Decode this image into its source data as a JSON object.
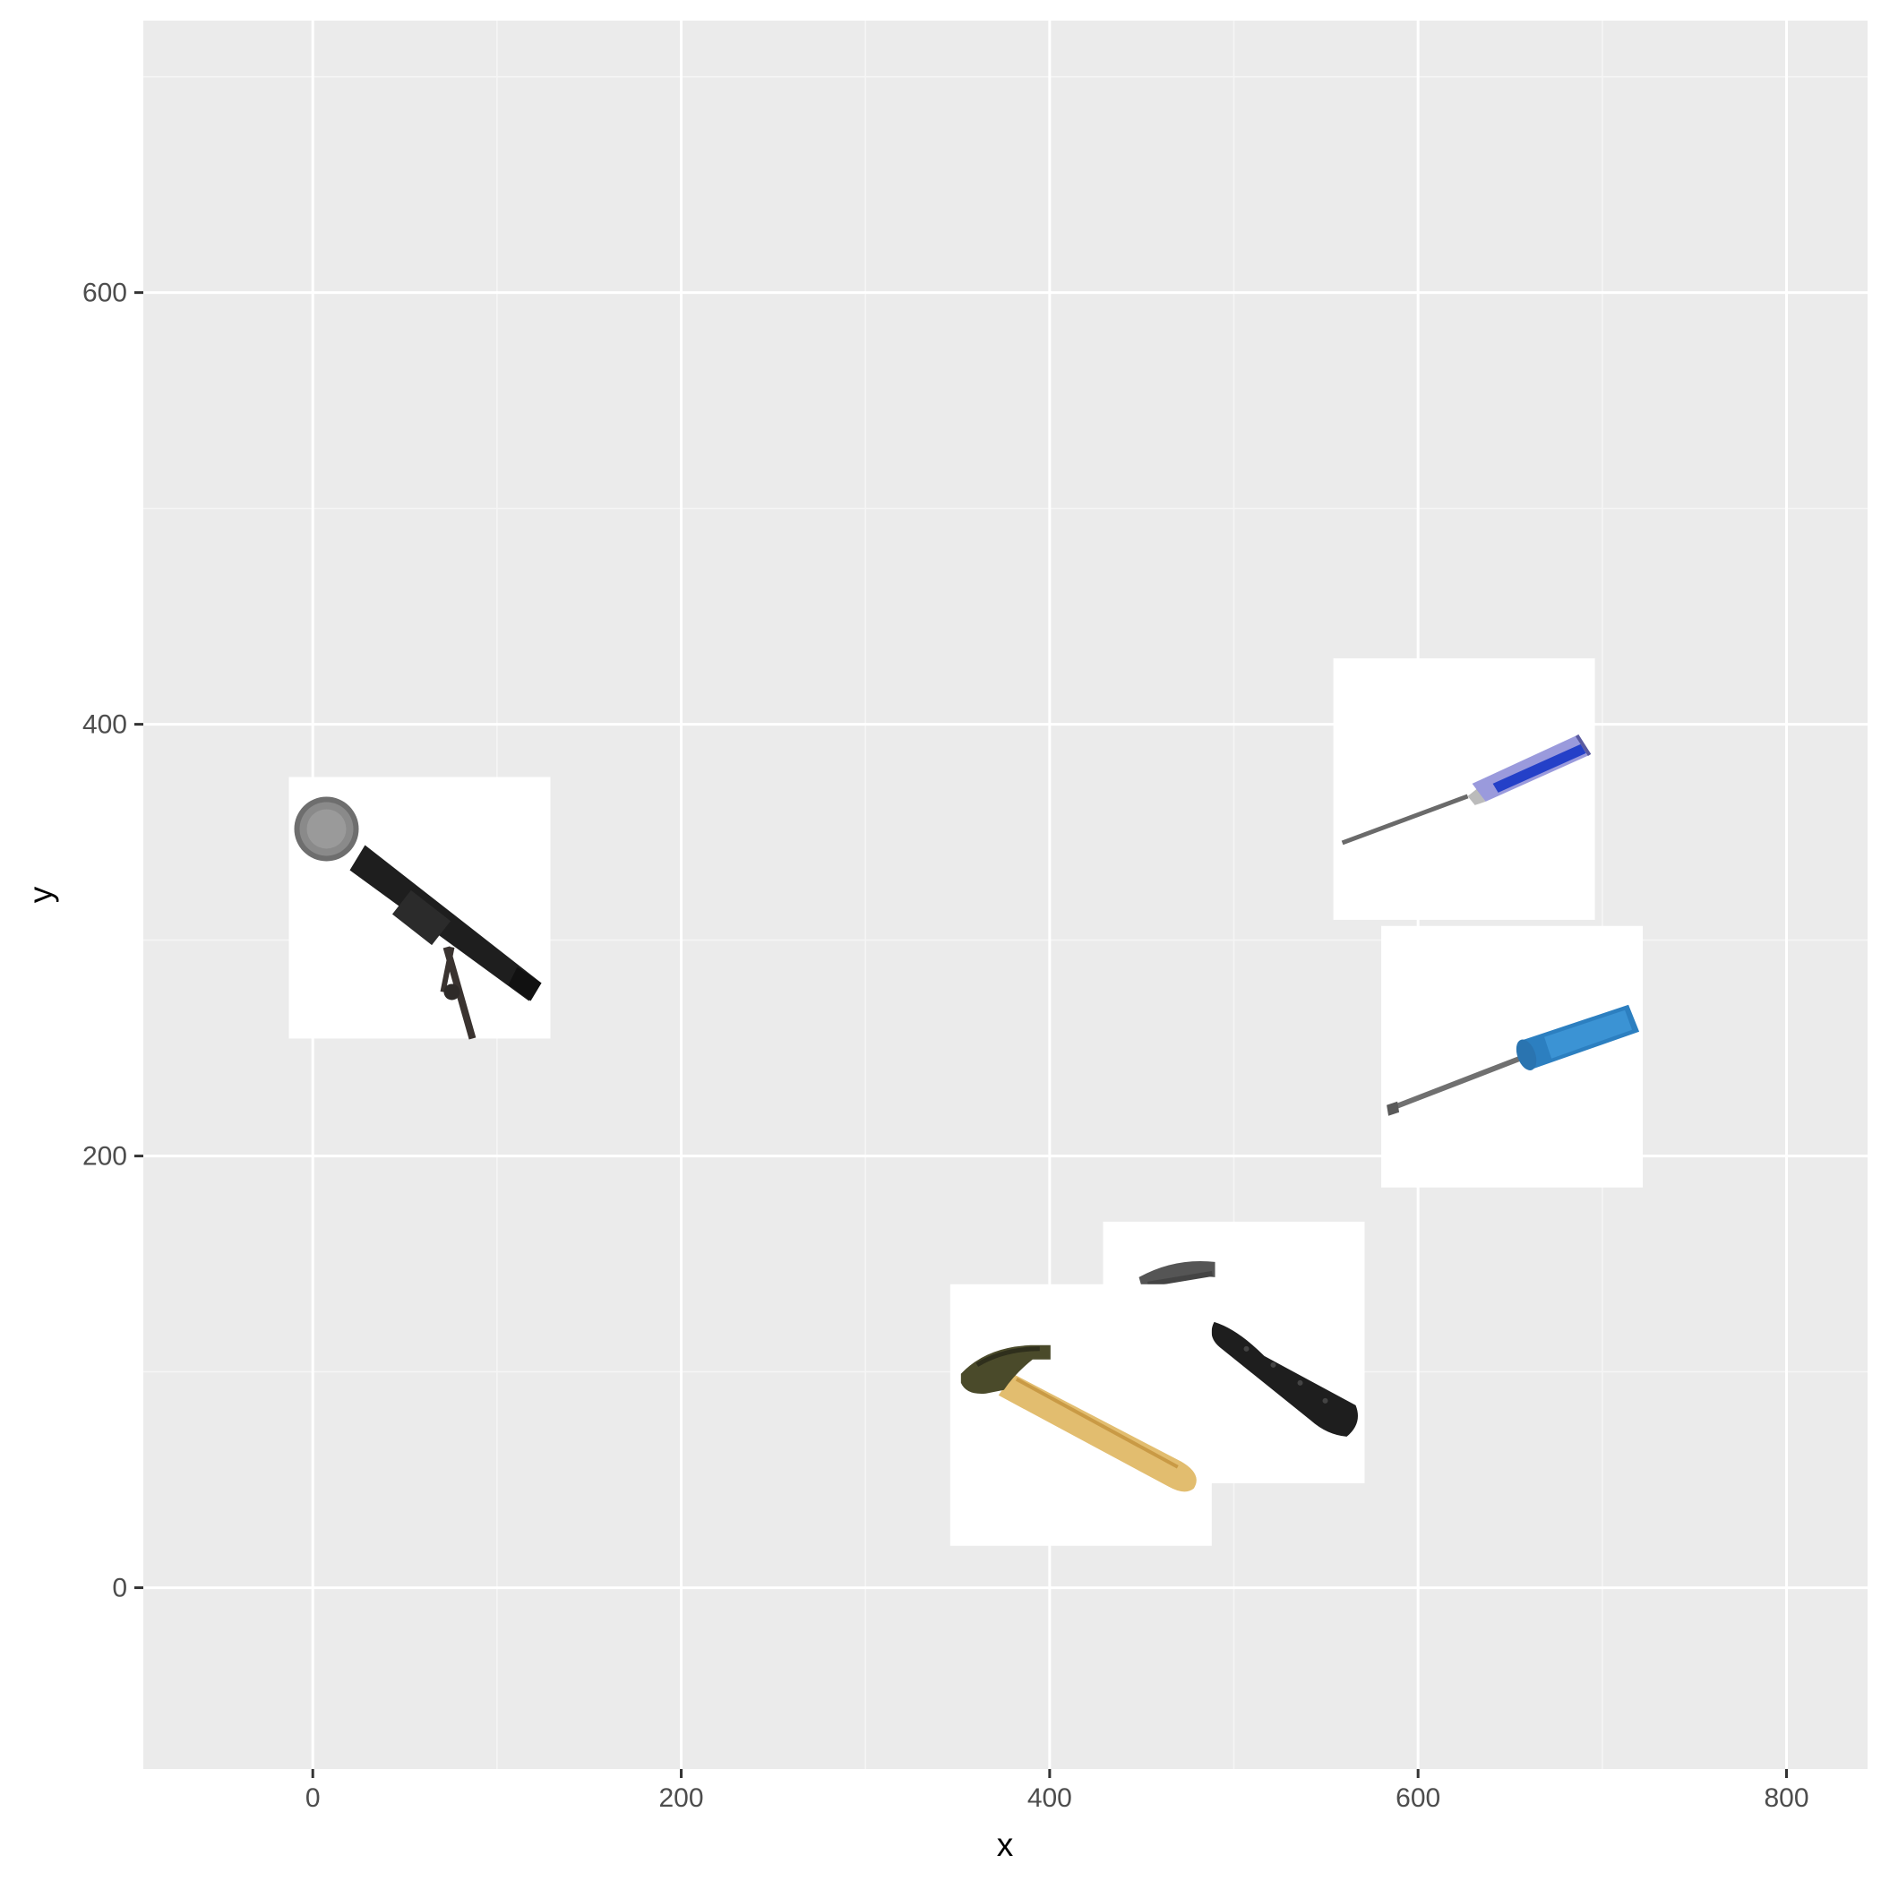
{
  "chart_data": {
    "type": "scatter",
    "marker": "image",
    "xlabel": "x",
    "ylabel": "y",
    "xlim": [
      -92,
      844
    ],
    "ylim": [
      -84,
      726
    ],
    "x_ticks": [
      0,
      200,
      400,
      600,
      800
    ],
    "y_ticks": [
      0,
      200,
      400,
      600
    ],
    "grid": true,
    "legend": "none",
    "points": [
      {
        "x": 58,
        "y": 315,
        "image": "microphone-on-stand"
      },
      {
        "x": 625,
        "y": 370,
        "image": "blue-clear-screwdriver"
      },
      {
        "x": 651,
        "y": 246,
        "image": "blue-screwdriver"
      },
      {
        "x": 500,
        "y": 109,
        "image": "black-handled-hammer"
      },
      {
        "x": 417,
        "y": 80,
        "image": "wooden-claw-hammer"
      }
    ]
  },
  "colors": {
    "panel_background": "#ebebeb",
    "grid_major": "#ffffff",
    "grid_minor": "#f5f5f5",
    "tick_text": "#4d4d4d",
    "tick_mark": "#333333"
  }
}
